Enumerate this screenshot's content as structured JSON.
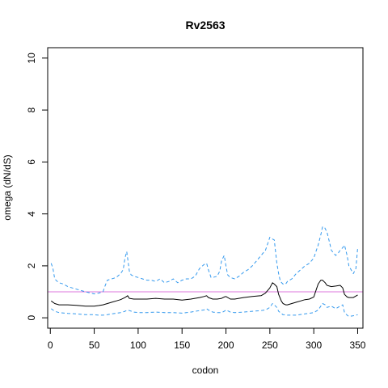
{
  "chart_data": {
    "type": "line",
    "title": "Rv2563",
    "xlabel": "codon",
    "ylabel": "omega (dN/dS)",
    "xlim": [
      -3,
      356
    ],
    "ylim": [
      -0.4,
      10.4
    ],
    "x_ticks": [
      0,
      50,
      100,
      150,
      200,
      250,
      300,
      350
    ],
    "y_ticks": [
      0,
      2,
      4,
      6,
      8,
      10
    ],
    "grid": false,
    "reference_line": {
      "y": 1,
      "color": "#dd77dd"
    },
    "colors": {
      "mean": "#000000",
      "bounds": "#3399ee"
    },
    "series": [
      {
        "role": "mean",
        "style": "solid",
        "x": [
          1,
          5,
          10,
          20,
          30,
          40,
          50,
          55,
          60,
          65,
          70,
          75,
          80,
          85,
          88,
          90,
          95,
          100,
          110,
          120,
          130,
          140,
          150,
          160,
          170,
          175,
          178,
          180,
          185,
          190,
          195,
          198,
          200,
          205,
          210,
          220,
          230,
          240,
          245,
          250,
          253,
          255,
          258,
          260,
          263,
          265,
          268,
          270,
          275,
          280,
          285,
          290,
          295,
          300,
          303,
          305,
          308,
          310,
          313,
          315,
          320,
          325,
          330,
          333,
          335,
          338,
          340,
          345,
          350
        ],
        "y": [
          0.65,
          0.55,
          0.5,
          0.5,
          0.48,
          0.45,
          0.45,
          0.47,
          0.5,
          0.55,
          0.6,
          0.65,
          0.7,
          0.78,
          0.85,
          0.75,
          0.72,
          0.72,
          0.72,
          0.75,
          0.72,
          0.72,
          0.68,
          0.72,
          0.78,
          0.82,
          0.85,
          0.78,
          0.72,
          0.72,
          0.75,
          0.8,
          0.82,
          0.72,
          0.72,
          0.78,
          0.82,
          0.85,
          0.95,
          1.15,
          1.35,
          1.3,
          1.2,
          0.9,
          0.65,
          0.55,
          0.5,
          0.5,
          0.55,
          0.6,
          0.65,
          0.7,
          0.72,
          0.8,
          1.1,
          1.3,
          1.45,
          1.45,
          1.35,
          1.25,
          1.2,
          1.22,
          1.25,
          1.15,
          0.9,
          0.8,
          0.78,
          0.78,
          0.88
        ]
      },
      {
        "role": "upper",
        "style": "dashed",
        "x": [
          1,
          3,
          5,
          8,
          10,
          15,
          20,
          30,
          40,
          50,
          55,
          60,
          62,
          65,
          70,
          75,
          80,
          83,
          85,
          87,
          88,
          90,
          92,
          95,
          100,
          105,
          110,
          115,
          120,
          125,
          130,
          135,
          140,
          145,
          150,
          155,
          160,
          165,
          170,
          175,
          178,
          180,
          183,
          185,
          190,
          193,
          195,
          198,
          200,
          202,
          205,
          210,
          215,
          220,
          225,
          230,
          235,
          240,
          245,
          248,
          250,
          252,
          255,
          258,
          260,
          262,
          265,
          268,
          270,
          275,
          280,
          285,
          290,
          295,
          300,
          302,
          305,
          308,
          310,
          312,
          315,
          318,
          320,
          325,
          328,
          330,
          333,
          335,
          338,
          340,
          345,
          348,
          350
        ],
        "y": [
          2.1,
          1.9,
          1.5,
          1.4,
          1.35,
          1.3,
          1.2,
          1.1,
          1.0,
          0.92,
          0.95,
          1.0,
          1.2,
          1.45,
          1.5,
          1.55,
          1.7,
          1.85,
          2.3,
          2.55,
          2.3,
          1.8,
          1.65,
          1.6,
          1.55,
          1.5,
          1.45,
          1.45,
          1.4,
          1.5,
          1.35,
          1.4,
          1.5,
          1.35,
          1.45,
          1.5,
          1.5,
          1.6,
          1.9,
          2.05,
          2.1,
          1.85,
          1.55,
          1.55,
          1.6,
          1.8,
          2.2,
          2.4,
          2.0,
          1.65,
          1.55,
          1.5,
          1.6,
          1.75,
          1.85,
          2.0,
          2.2,
          2.4,
          2.6,
          2.9,
          3.1,
          3.05,
          3.0,
          2.1,
          1.7,
          1.4,
          1.3,
          1.3,
          1.4,
          1.5,
          1.7,
          1.85,
          2.0,
          2.1,
          2.3,
          2.5,
          2.8,
          3.2,
          3.5,
          3.5,
          3.3,
          2.9,
          2.6,
          2.4,
          2.5,
          2.6,
          2.7,
          2.8,
          2.4,
          2.0,
          1.7,
          1.9,
          2.7
        ]
      },
      {
        "role": "lower",
        "style": "dashed",
        "x": [
          1,
          5,
          10,
          20,
          30,
          40,
          50,
          55,
          60,
          65,
          70,
          80,
          85,
          88,
          90,
          95,
          100,
          110,
          120,
          130,
          140,
          150,
          160,
          170,
          175,
          178,
          180,
          185,
          190,
          195,
          198,
          200,
          205,
          210,
          220,
          230,
          240,
          245,
          250,
          253,
          255,
          258,
          260,
          265,
          270,
          280,
          290,
          300,
          305,
          308,
          310,
          313,
          315,
          320,
          325,
          330,
          333,
          335,
          338,
          340,
          345,
          350
        ],
        "y": [
          0.35,
          0.25,
          0.2,
          0.17,
          0.15,
          0.12,
          0.12,
          0.1,
          0.1,
          0.12,
          0.15,
          0.2,
          0.25,
          0.3,
          0.28,
          0.22,
          0.2,
          0.2,
          0.22,
          0.2,
          0.2,
          0.18,
          0.22,
          0.28,
          0.3,
          0.35,
          0.3,
          0.22,
          0.2,
          0.2,
          0.25,
          0.3,
          0.22,
          0.2,
          0.22,
          0.25,
          0.28,
          0.3,
          0.4,
          0.55,
          0.5,
          0.4,
          0.25,
          0.12,
          0.1,
          0.1,
          0.15,
          0.2,
          0.3,
          0.45,
          0.55,
          0.5,
          0.4,
          0.45,
          0.35,
          0.45,
          0.5,
          0.2,
          0.1,
          0.05,
          0.08,
          0.12
        ]
      }
    ]
  }
}
